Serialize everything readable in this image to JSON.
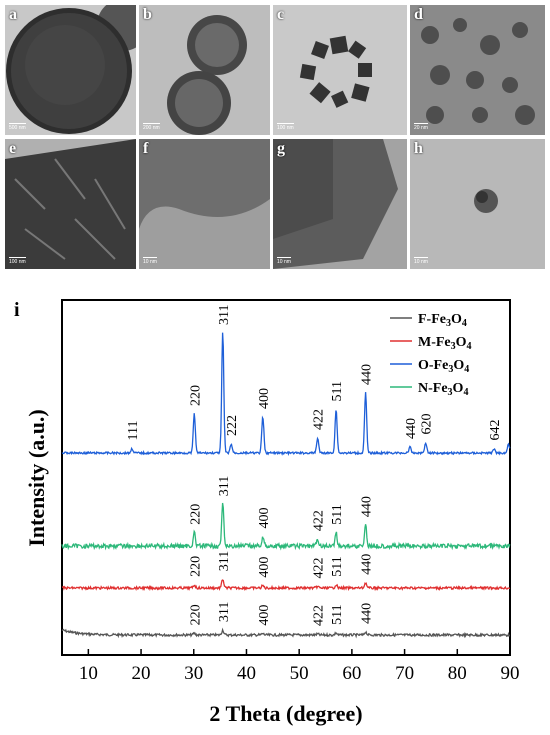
{
  "panels": [
    {
      "label": "a",
      "scale": "500 nm"
    },
    {
      "label": "b",
      "scale": "200 nm"
    },
    {
      "label": "c",
      "scale": "100 nm"
    },
    {
      "label": "d",
      "scale": "20 nm"
    },
    {
      "label": "e",
      "scale": "100 nm"
    },
    {
      "label": "f",
      "scale": "10 nm"
    },
    {
      "label": "g",
      "scale": "10 nm"
    },
    {
      "label": "h",
      "scale": "10 nm"
    }
  ],
  "chart_label": "i",
  "chart_data": {
    "type": "line",
    "xlabel": "2 Theta (degree)",
    "ylabel": "Intensity (a.u.)",
    "xlim": [
      5,
      90
    ],
    "xticks": [
      10,
      20,
      30,
      40,
      50,
      60,
      70,
      80,
      90
    ],
    "legend_position": "top-right",
    "series": [
      {
        "name": "F-Fe3O4",
        "color": "#555555",
        "peaks": [
          [
            30.1,
            0.12
          ],
          [
            35.5,
            0.35
          ],
          [
            43.1,
            0.1
          ],
          [
            53.5,
            0.07
          ],
          [
            57.0,
            0.15
          ],
          [
            62.6,
            0.22
          ]
        ],
        "labels": [
          [
            "220",
            30.1
          ],
          [
            "311",
            35.5
          ],
          [
            "400",
            43.1
          ],
          [
            "422",
            53.5
          ],
          [
            "511",
            57.0
          ],
          [
            "440",
            62.6
          ]
        ]
      },
      {
        "name": "M-Fe3O4",
        "color": "#e03030",
        "peaks": [
          [
            30.1,
            0.14
          ],
          [
            35.5,
            0.4
          ],
          [
            43.1,
            0.11
          ],
          [
            53.5,
            0.07
          ],
          [
            57.0,
            0.15
          ],
          [
            62.6,
            0.24
          ]
        ],
        "labels": [
          [
            "220",
            30.1
          ],
          [
            "311",
            35.5
          ],
          [
            "400",
            43.1
          ],
          [
            "422",
            53.5
          ],
          [
            "511",
            57.0
          ],
          [
            "440",
            62.6
          ]
        ]
      },
      {
        "name": "O-Fe3O4",
        "color": "#1e5fd8",
        "peaks": [
          [
            18.3,
            0.15
          ],
          [
            30.1,
            1.3
          ],
          [
            35.5,
            4.0
          ],
          [
            37.1,
            0.3
          ],
          [
            43.1,
            1.2
          ],
          [
            53.5,
            0.5
          ],
          [
            57.0,
            1.45
          ],
          [
            62.6,
            2.0
          ],
          [
            71.0,
            0.2
          ],
          [
            74.0,
            0.35
          ],
          [
            87.0,
            0.15
          ],
          [
            89.7,
            0.3
          ]
        ],
        "labels": [
          [
            "111",
            18.3
          ],
          [
            "220",
            30.1
          ],
          [
            "311",
            35.5
          ],
          [
            "222",
            37.1
          ],
          [
            "400",
            43.1
          ],
          [
            "422",
            53.5
          ],
          [
            "511",
            57.0
          ],
          [
            "440",
            62.6
          ],
          [
            "440",
            71.0
          ],
          [
            "620",
            74.0
          ],
          [
            "642",
            87.0
          ]
        ]
      },
      {
        "name": "N-Fe3O4",
        "color": "#2db87a",
        "peaks": [
          [
            30.1,
            0.35
          ],
          [
            35.5,
            1.1
          ],
          [
            43.1,
            0.25
          ],
          [
            53.5,
            0.18
          ],
          [
            57.0,
            0.35
          ],
          [
            62.6,
            0.55
          ]
        ],
        "labels": [
          [
            "220",
            30.1
          ],
          [
            "311",
            35.5
          ],
          [
            "400",
            43.1
          ],
          [
            "422",
            53.5
          ],
          [
            "511",
            57.0
          ],
          [
            "440",
            62.6
          ]
        ]
      }
    ]
  }
}
